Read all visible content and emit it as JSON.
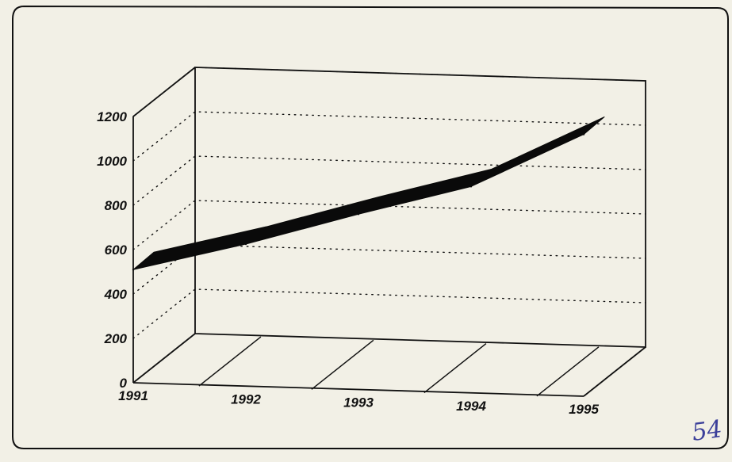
{
  "chart_data": {
    "type": "line",
    "style": "3d-ribbon",
    "x": [
      1991,
      1992,
      1993,
      1994,
      1995
    ],
    "x_tick_labels": [
      "1991",
      "1992",
      "1993",
      "1994",
      "1995"
    ],
    "series": [
      {
        "values": [
          510,
          640,
          790,
          930,
          1180
        ]
      }
    ],
    "y_tick_labels": [
      "0",
      "200",
      "400",
      "600",
      "800",
      "1000",
      "1200"
    ],
    "ylim": [
      0,
      1200
    ],
    "grid": "dotted-horizontal",
    "title": "",
    "xlabel": "",
    "ylabel": "",
    "colors": {
      "line": "#0a0a0a",
      "frame": "#111111",
      "paper": "#f2f0e6"
    }
  },
  "annotation": {
    "handwritten_number": "54"
  }
}
